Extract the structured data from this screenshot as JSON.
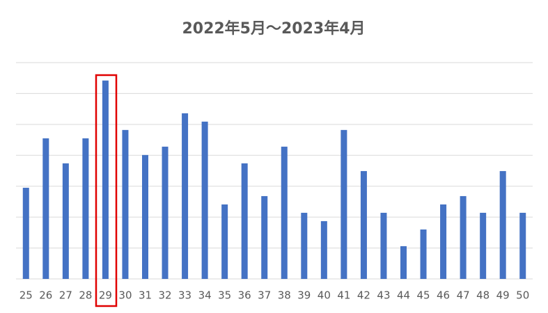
{
  "chart_data": {
    "type": "bar",
    "title": "2022年5月～2023年4月",
    "categories": [
      "25",
      "26",
      "27",
      "28",
      "29",
      "30",
      "31",
      "32",
      "33",
      "34",
      "35",
      "36",
      "37",
      "38",
      "39",
      "40",
      "41",
      "42",
      "43",
      "44",
      "45",
      "46",
      "47",
      "48",
      "49",
      "50"
    ],
    "values": [
      2.95,
      4.55,
      3.74,
      4.55,
      6.42,
      4.82,
      4.01,
      4.28,
      5.36,
      5.09,
      2.41,
      3.74,
      2.68,
      4.28,
      2.14,
      1.87,
      4.82,
      3.49,
      2.14,
      1.06,
      1.6,
      2.41,
      2.68,
      2.14,
      3.49,
      2.14
    ],
    "color": "#4472c4",
    "ylim": [
      0,
      7
    ],
    "yticks": [
      0,
      1,
      2,
      3,
      4,
      5,
      6,
      7
    ],
    "grid": true
  }
}
